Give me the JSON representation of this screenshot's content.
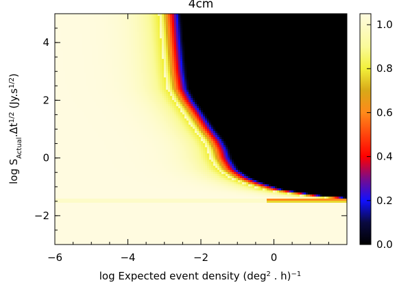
{
  "chart_data": {
    "type": "heatmap",
    "title": "4cm",
    "xlabel_main": "log Expected event density (deg",
    "xlabel_sup1": "2",
    "xlabel_mid": " . h)",
    "xlabel_sup2": "−1",
    "ylabel_main": "log S",
    "ylabel_sub": "Actual",
    "ylabel_mid": ".Δt",
    "ylabel_sup1": "1/2",
    "ylabel_unit": " (Jy.s",
    "ylabel_sup2": "1/2",
    "ylabel_close": ")",
    "xlim": [
      -6,
      2
    ],
    "ylim": [
      -3,
      5
    ],
    "x_ticks": [
      -6,
      -4,
      -2,
      0
    ],
    "x_tick_labels": [
      "−6",
      "−4",
      "−2",
      "0"
    ],
    "y_ticks": [
      -2,
      0,
      2,
      4
    ],
    "y_tick_labels": [
      "−2",
      "0",
      "2",
      "4"
    ],
    "colorbar": {
      "range": [
        0,
        1.05
      ],
      "ticks": [
        0,
        0.2,
        0.4,
        0.6,
        0.8,
        1.0
      ],
      "tick_labels": [
        "0.0",
        "0.2",
        "0.4",
        "0.6",
        "0.8",
        "1.0"
      ],
      "colormap_stops": [
        {
          "value": 0.0,
          "color": "#000000"
        },
        {
          "value": 0.1,
          "color": "#0a0a40"
        },
        {
          "value": 0.2,
          "color": "#1010ff"
        },
        {
          "value": 0.3,
          "color": "#7a0c8a"
        },
        {
          "value": 0.4,
          "color": "#ff0000"
        },
        {
          "value": 0.6,
          "color": "#ff8a1a"
        },
        {
          "value": 0.7,
          "color": "#d8a818"
        },
        {
          "value": 0.8,
          "color": "#f2f03a"
        },
        {
          "value": 0.9,
          "color": "#fafa99"
        },
        {
          "value": 1.05,
          "color": "#fffbe0"
        }
      ]
    },
    "detection_boundary": {
      "y": [
        5,
        4,
        3,
        2.4,
        2,
        1.6,
        1.0,
        0.6,
        0.3,
        0.0,
        -0.4,
        -0.7,
        -0.9,
        -1.1,
        -1.2,
        -1.3,
        -1.4
      ],
      "x": [
        -2.85,
        -2.78,
        -2.7,
        -2.62,
        -2.45,
        -2.22,
        -1.9,
        -1.65,
        -1.52,
        -1.45,
        -1.25,
        -0.9,
        -0.5,
        0.0,
        0.5,
        1.0,
        1.9
      ]
    },
    "transition_width": 0.62
  }
}
